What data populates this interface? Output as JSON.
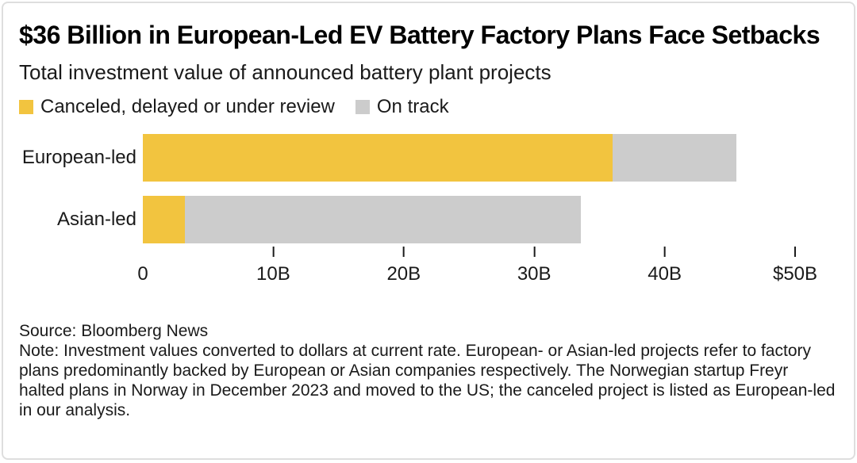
{
  "header": {
    "title": "$36 Billion in European-Led EV Battery Factory Plans Face Setbacks",
    "subtitle": "Total investment value of announced battery plant projects"
  },
  "colors": {
    "canceled": "#F2C43F",
    "on_track": "#CCCCCC",
    "text": "#1a1a1a",
    "tick": "#1a1a1a",
    "card_border": "#DEDEDE"
  },
  "chart_data": {
    "type": "bar",
    "orientation": "horizontal",
    "stacked": true,
    "title": "$36 Billion in European-Led EV Battery Factory Plans Face Setbacks",
    "subtitle": "Total investment value of announced battery plant projects",
    "unit": "billion USD",
    "categories": [
      "European-led",
      "Asian-led"
    ],
    "series": [
      {
        "name": "Canceled, delayed or under review",
        "color": "#F2C43F",
        "values": [
          36,
          3.2
        ]
      },
      {
        "name": "On track",
        "color": "#CCCCCC",
        "values": [
          9.5,
          30.4
        ]
      }
    ],
    "totals": [
      45.5,
      33.6
    ],
    "xlim": [
      0,
      50
    ],
    "x_ticks": [
      {
        "value": 0,
        "label": "0",
        "mark": false
      },
      {
        "value": 10,
        "label": "10B",
        "mark": true
      },
      {
        "value": 20,
        "label": "20B",
        "mark": true
      },
      {
        "value": 30,
        "label": "30B",
        "mark": true
      },
      {
        "value": 40,
        "label": "40B",
        "mark": true
      },
      {
        "value": 50,
        "label": "$50B",
        "mark": true
      }
    ],
    "legend_position": "top",
    "grid": false
  },
  "legend": [
    {
      "label": "Canceled, delayed or under review",
      "color": "#F2C43F"
    },
    {
      "label": "On track",
      "color": "#CCCCCC"
    }
  ],
  "footer": {
    "source": "Source: Bloomberg News",
    "note": "Note: Investment values converted to dollars at current rate. European- or Asian-led projects refer to factory plans predominantly backed by European or Asian companies respectively. The Norwegian startup Freyr halted plans in Norway in December 2023 and moved to the US; the canceled project is listed as European-led in our analysis."
  }
}
